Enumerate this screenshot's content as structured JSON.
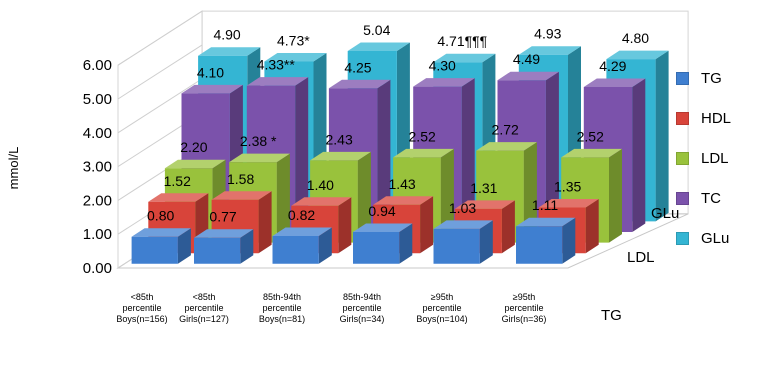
{
  "chart_data": {
    "type": "bar",
    "ylabel": "mmol/L",
    "ylim": [
      0,
      6
    ],
    "yticks": [
      "0.00",
      "1.00",
      "2.00",
      "3.00",
      "4.00",
      "5.00",
      "6.00"
    ],
    "categories": [
      [
        "<85th",
        "percentile",
        "Boys(n=156)"
      ],
      [
        "<85th",
        "percentile",
        "Girls(n=127)"
      ],
      [
        "85th-94th",
        "percentile",
        "Boys(n=81)"
      ],
      [
        "85th-94th",
        "percentile",
        "Girls(n=34)"
      ],
      [
        "≥95th",
        "percentile",
        "Boys(n=104)"
      ],
      [
        "≥95th",
        "percentile",
        "Girls(n=36)"
      ]
    ],
    "depth_labels": [
      "TG",
      "LDL",
      "GLu"
    ],
    "series": [
      {
        "name": "TG",
        "color": "#3f7fd0",
        "values": [
          0.8,
          0.77,
          0.82,
          0.94,
          1.03,
          1.11
        ],
        "labels": [
          "0.80",
          "0.77",
          "0.82",
          "0.94",
          "1.03",
          "1.11"
        ]
      },
      {
        "name": "HDL",
        "color": "#d8443a",
        "values": [
          1.52,
          1.58,
          1.4,
          1.43,
          1.31,
          1.35
        ],
        "labels": [
          "1.52",
          "1.58",
          "1.40",
          "1.43",
          "1.31",
          "1.35"
        ]
      },
      {
        "name": "LDL",
        "color": "#99c23c",
        "values": [
          2.2,
          2.38,
          2.43,
          2.52,
          2.72,
          2.52
        ],
        "labels": [
          "2.20",
          "2.38 *",
          "2.43",
          "2.52",
          "2.72",
          "2.52"
        ]
      },
      {
        "name": "TC",
        "color": "#7b52ab",
        "values": [
          4.1,
          4.33,
          4.25,
          4.3,
          4.49,
          4.29
        ],
        "labels": [
          "4.10",
          "4.33**",
          "4.25",
          "4.30",
          "4.49",
          "4.29"
        ]
      },
      {
        "name": "GLu",
        "color": "#34b5d3",
        "values": [
          4.9,
          4.73,
          5.04,
          4.71,
          4.93,
          4.8
        ],
        "labels": [
          "4.90",
          "4.73*",
          "5.04",
          "4.71¶¶¶",
          "4.93",
          "4.80"
        ]
      }
    ],
    "legend_position": "right",
    "grid": false
  }
}
